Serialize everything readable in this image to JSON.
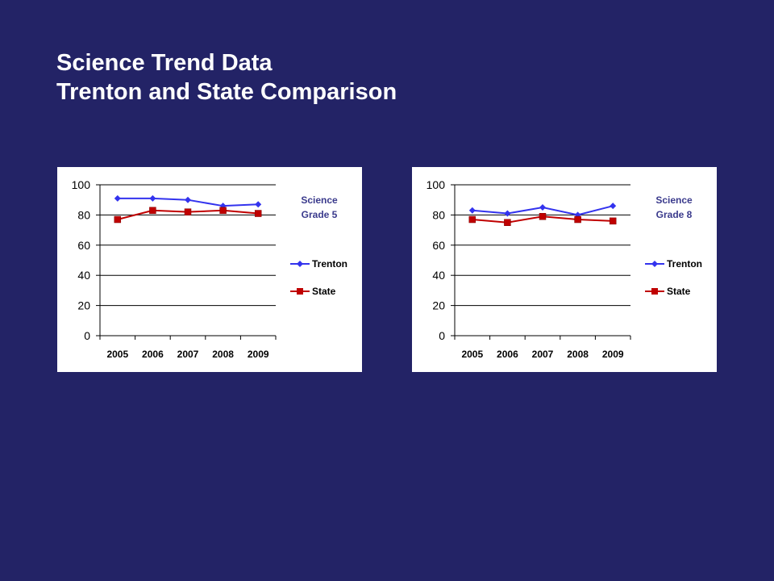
{
  "slide": {
    "title_line1": "Science Trend Data",
    "title_line2": "Trenton and State Comparison"
  },
  "colors": {
    "background": "#232366",
    "trenton": "#3333ee",
    "state": "#c00000",
    "title": "#ffffff",
    "chart_title": "#3a3a8c"
  },
  "chart_data": [
    {
      "type": "line",
      "title_line1": "Science",
      "title_line2": "Grade 5",
      "categories": [
        "2005",
        "2006",
        "2007",
        "2008",
        "2009"
      ],
      "ylim": [
        0,
        100
      ],
      "yticks": [
        "0",
        "20",
        "40",
        "60",
        "80",
        "100"
      ],
      "grid": true,
      "legend": "right",
      "series": [
        {
          "name": "Trenton",
          "marker": "diamond",
          "values": [
            91,
            91,
            90,
            86,
            87
          ]
        },
        {
          "name": "State",
          "marker": "square",
          "values": [
            77,
            83,
            82,
            83,
            81
          ]
        }
      ]
    },
    {
      "type": "line",
      "title_line1": "Science",
      "title_line2": "Grade 8",
      "categories": [
        "2005",
        "2006",
        "2007",
        "2008",
        "2009"
      ],
      "ylim": [
        0,
        100
      ],
      "yticks": [
        "0",
        "20",
        "40",
        "60",
        "80",
        "100"
      ],
      "grid": true,
      "legend": "right",
      "series": [
        {
          "name": "Trenton",
          "marker": "diamond",
          "values": [
            83,
            81,
            85,
            80,
            86
          ]
        },
        {
          "name": "State",
          "marker": "square",
          "values": [
            77,
            75,
            79,
            77,
            76
          ]
        }
      ]
    }
  ]
}
